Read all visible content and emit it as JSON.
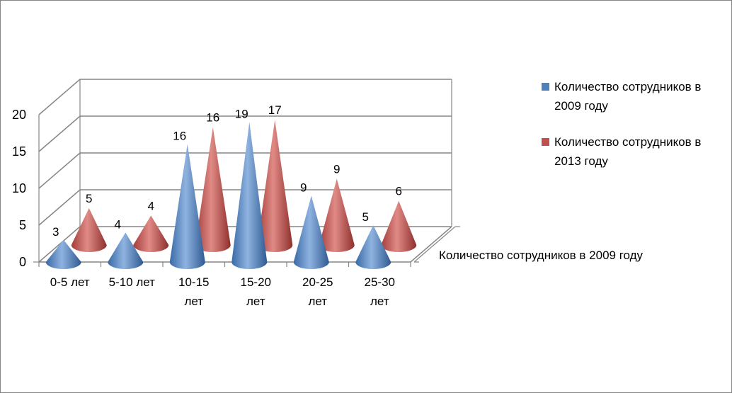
{
  "chart_data": {
    "type": "bar",
    "shape": "cone-3d",
    "categories": [
      [
        "0-5 лет"
      ],
      [
        "5-10 лет"
      ],
      [
        "10-15",
        "лет"
      ],
      [
        "15-20",
        "лет"
      ],
      [
        "20-25",
        "лет"
      ],
      [
        "25-30",
        "лет"
      ]
    ],
    "series": [
      {
        "name": [
          "Количество сотрудников в",
          "2009 году"
        ],
        "color": "#4f81bd",
        "values": [
          3,
          4,
          16,
          19,
          9,
          5
        ]
      },
      {
        "name": [
          "Количество сотрудников в",
          "2013 году"
        ],
        "color": "#c0504d",
        "values": [
          5,
          4,
          16,
          17,
          9,
          6
        ]
      }
    ],
    "y_ticks": [
      "0",
      "5",
      "10",
      "15",
      "20"
    ],
    "ylim": [
      0,
      20
    ],
    "depth_axis_label": "Количество сотрудников в 2009 году",
    "legend_position": "right",
    "grid": true
  }
}
